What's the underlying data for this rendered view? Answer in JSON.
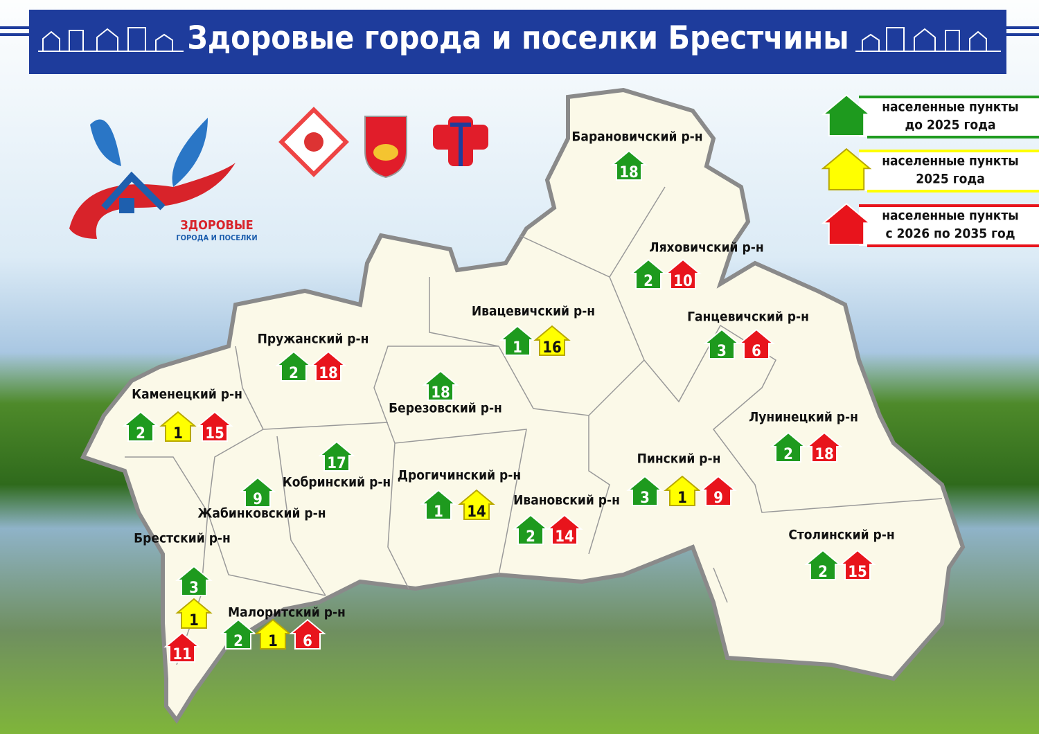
{
  "header": {
    "title": "Здоровые города и поселки Брестчины"
  },
  "logo": {
    "title": "ЗДОРОВЫЕ",
    "subtitle": "ГОРОДА И ПОСЕЛКИ"
  },
  "legend": [
    {
      "color": "#1e9a1e",
      "lines": [
        "населенные пункты",
        "до 2025 года"
      ]
    },
    {
      "color": "#ffff00",
      "lines": [
        "населенные пункты",
        "2025 года"
      ]
    },
    {
      "color": "#e8141c",
      "lines": [
        "населенные пункты",
        "с 2026 по 2035 год"
      ]
    }
  ],
  "districts": [
    {
      "name": "Барановичский р-н",
      "items": [
        {
          "color": "#1e9a1e",
          "value": 18
        }
      ]
    },
    {
      "name": "Ляховичский р-н",
      "items": [
        {
          "color": "#1e9a1e",
          "value": 2
        },
        {
          "color": "#e8141c",
          "value": 10
        }
      ]
    },
    {
      "name": "Ивацевичский р-н",
      "items": [
        {
          "color": "#1e9a1e",
          "value": 1
        },
        {
          "color": "#ffff00",
          "value": 16
        }
      ]
    },
    {
      "name": "Ганцевичский р-н",
      "items": [
        {
          "color": "#1e9a1e",
          "value": 3
        },
        {
          "color": "#e8141c",
          "value": 6
        }
      ]
    },
    {
      "name": "Пружанский р-н",
      "items": [
        {
          "color": "#1e9a1e",
          "value": 2
        },
        {
          "color": "#e8141c",
          "value": 18
        }
      ]
    },
    {
      "name": "Березовский р-н",
      "items": [
        {
          "color": "#1e9a1e",
          "value": 18
        }
      ]
    },
    {
      "name": "Каменецкий р-н",
      "items": [
        {
          "color": "#1e9a1e",
          "value": 2
        },
        {
          "color": "#ffff00",
          "value": 1
        },
        {
          "color": "#e8141c",
          "value": 15
        }
      ]
    },
    {
      "name": "Лунинецкий р-н",
      "items": [
        {
          "color": "#1e9a1e",
          "value": 2
        },
        {
          "color": "#e8141c",
          "value": 18
        }
      ]
    },
    {
      "name": "Кобринский р-н",
      "items": [
        {
          "color": "#1e9a1e",
          "value": 17
        }
      ]
    },
    {
      "name": "Дрогичинский р-н",
      "items": [
        {
          "color": "#1e9a1e",
          "value": 1
        },
        {
          "color": "#ffff00",
          "value": 14
        }
      ]
    },
    {
      "name": "Пинский р-н",
      "items": [
        {
          "color": "#1e9a1e",
          "value": 3
        },
        {
          "color": "#ffff00",
          "value": 1
        },
        {
          "color": "#e8141c",
          "value": 9
        }
      ]
    },
    {
      "name": "Жабинковский р-н",
      "items": [
        {
          "color": "#1e9a1e",
          "value": 9
        }
      ]
    },
    {
      "name": "Ивановский р-н",
      "items": [
        {
          "color": "#1e9a1e",
          "value": 2
        },
        {
          "color": "#e8141c",
          "value": 14
        }
      ]
    },
    {
      "name": "Брестский р-н",
      "items": [
        {
          "color": "#1e9a1e",
          "value": 3
        },
        {
          "color": "#ffff00",
          "value": 1
        },
        {
          "color": "#e8141c",
          "value": 11
        }
      ]
    },
    {
      "name": "Столинский р-н",
      "items": [
        {
          "color": "#1e9a1e",
          "value": 2
        },
        {
          "color": "#e8141c",
          "value": 15
        }
      ]
    },
    {
      "name": "Малоритский р-н",
      "items": [
        {
          "color": "#1e9a1e",
          "value": 2
        },
        {
          "color": "#ffff00",
          "value": 1
        },
        {
          "color": "#e8141c",
          "value": 6
        }
      ]
    }
  ]
}
